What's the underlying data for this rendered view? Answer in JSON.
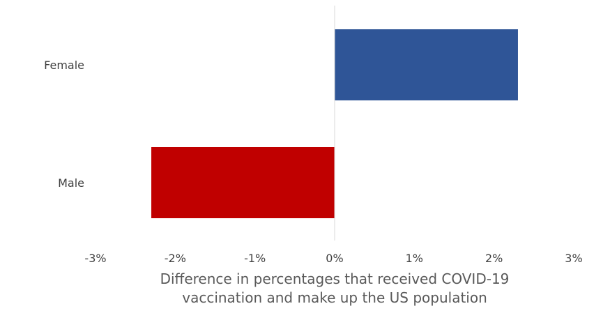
{
  "chart_data": {
    "type": "bar",
    "orientation": "horizontal",
    "categories": [
      "Female",
      "Male"
    ],
    "values": [
      2.3,
      -2.3
    ],
    "colors": [
      "#2f5597",
      "#c00000"
    ],
    "xlim": [
      -3,
      3
    ],
    "xticks": [
      -3,
      -2,
      -1,
      0,
      1,
      2,
      3
    ],
    "xtick_labels": [
      "-3%",
      "-2%",
      "-1%",
      "0%",
      "1%",
      "2%",
      "3%"
    ],
    "xlabel_lines": [
      "Difference in percentages that received COVID-19",
      "vaccination and make up the US population"
    ],
    "grid": false,
    "legend": "none"
  }
}
